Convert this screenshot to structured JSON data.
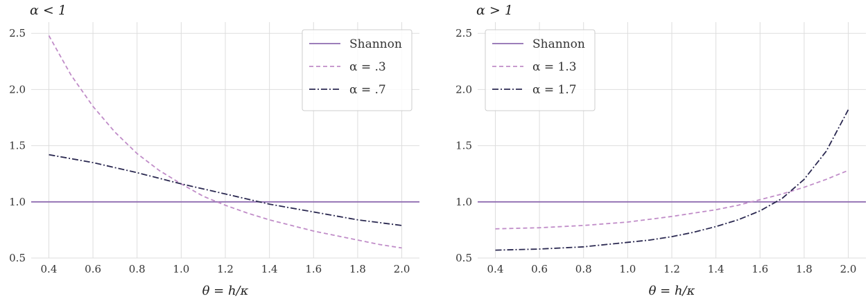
{
  "colors": {
    "shannon": "#8e6bb0",
    "dashed": "#c08cc8",
    "dashdot": "#2a2850",
    "grid": "#dddddd"
  },
  "chart_data": [
    {
      "type": "line",
      "title": "α < 1",
      "xlabel": "θ = h/κ",
      "ylabel": "",
      "xlim": [
        0.32,
        2.08
      ],
      "ylim": [
        0.5,
        2.6
      ],
      "xticks": [
        "0.4",
        "0.6",
        "0.8",
        "1.0",
        "1.2",
        "1.4",
        "1.6",
        "1.8",
        "2.0"
      ],
      "yticks": [
        "0.5",
        "1.0",
        "1.5",
        "2.0",
        "2.5"
      ],
      "grid": true,
      "legend_position": "top-right",
      "series": [
        {
          "name": "Shannon",
          "style": "solid",
          "x": [
            0.32,
            2.08
          ],
          "y": [
            1.0,
            1.0
          ]
        },
        {
          "name": "α = .3",
          "style": "dashed",
          "x": [
            0.4,
            0.5,
            0.6,
            0.7,
            0.8,
            0.9,
            1.0,
            1.1,
            1.2,
            1.3,
            1.4,
            1.5,
            1.6,
            1.7,
            1.8,
            1.9,
            2.0
          ],
          "y": [
            2.48,
            2.13,
            1.85,
            1.62,
            1.43,
            1.28,
            1.16,
            1.05,
            0.97,
            0.9,
            0.84,
            0.79,
            0.74,
            0.7,
            0.66,
            0.62,
            0.59
          ]
        },
        {
          "name": "α = .7",
          "style": "dashdot",
          "x": [
            0.4,
            0.6,
            0.8,
            1.0,
            1.2,
            1.4,
            1.6,
            1.8,
            2.0
          ],
          "y": [
            1.42,
            1.35,
            1.26,
            1.16,
            1.07,
            0.98,
            0.91,
            0.84,
            0.79
          ]
        }
      ]
    },
    {
      "type": "line",
      "title": "α > 1",
      "xlabel": "θ = h/κ",
      "ylabel": "",
      "xlim": [
        0.32,
        2.08
      ],
      "ylim": [
        0.5,
        2.6
      ],
      "xticks": [
        "0.4",
        "0.6",
        "0.8",
        "1.0",
        "1.2",
        "1.4",
        "1.6",
        "1.8",
        "2.0"
      ],
      "yticks": [
        "0.5",
        "1.0",
        "1.5",
        "2.0",
        "2.5"
      ],
      "grid": true,
      "legend_position": "top-left",
      "series": [
        {
          "name": "Shannon",
          "style": "solid",
          "x": [
            0.32,
            2.08
          ],
          "y": [
            1.0,
            1.0
          ]
        },
        {
          "name": "α = 1.3",
          "style": "dashed",
          "x": [
            0.4,
            0.6,
            0.8,
            1.0,
            1.2,
            1.4,
            1.5,
            1.6,
            1.7,
            1.8,
            1.9,
            2.0
          ],
          "y": [
            0.76,
            0.77,
            0.79,
            0.82,
            0.87,
            0.93,
            0.97,
            1.02,
            1.07,
            1.13,
            1.2,
            1.28
          ]
        },
        {
          "name": "α = 1.7",
          "style": "dashdot",
          "x": [
            0.4,
            0.6,
            0.8,
            1.0,
            1.1,
            1.2,
            1.3,
            1.4,
            1.5,
            1.6,
            1.7,
            1.8,
            1.9,
            2.0
          ],
          "y": [
            0.57,
            0.58,
            0.6,
            0.64,
            0.66,
            0.69,
            0.73,
            0.78,
            0.84,
            0.92,
            1.03,
            1.2,
            1.45,
            1.82
          ]
        }
      ]
    }
  ]
}
